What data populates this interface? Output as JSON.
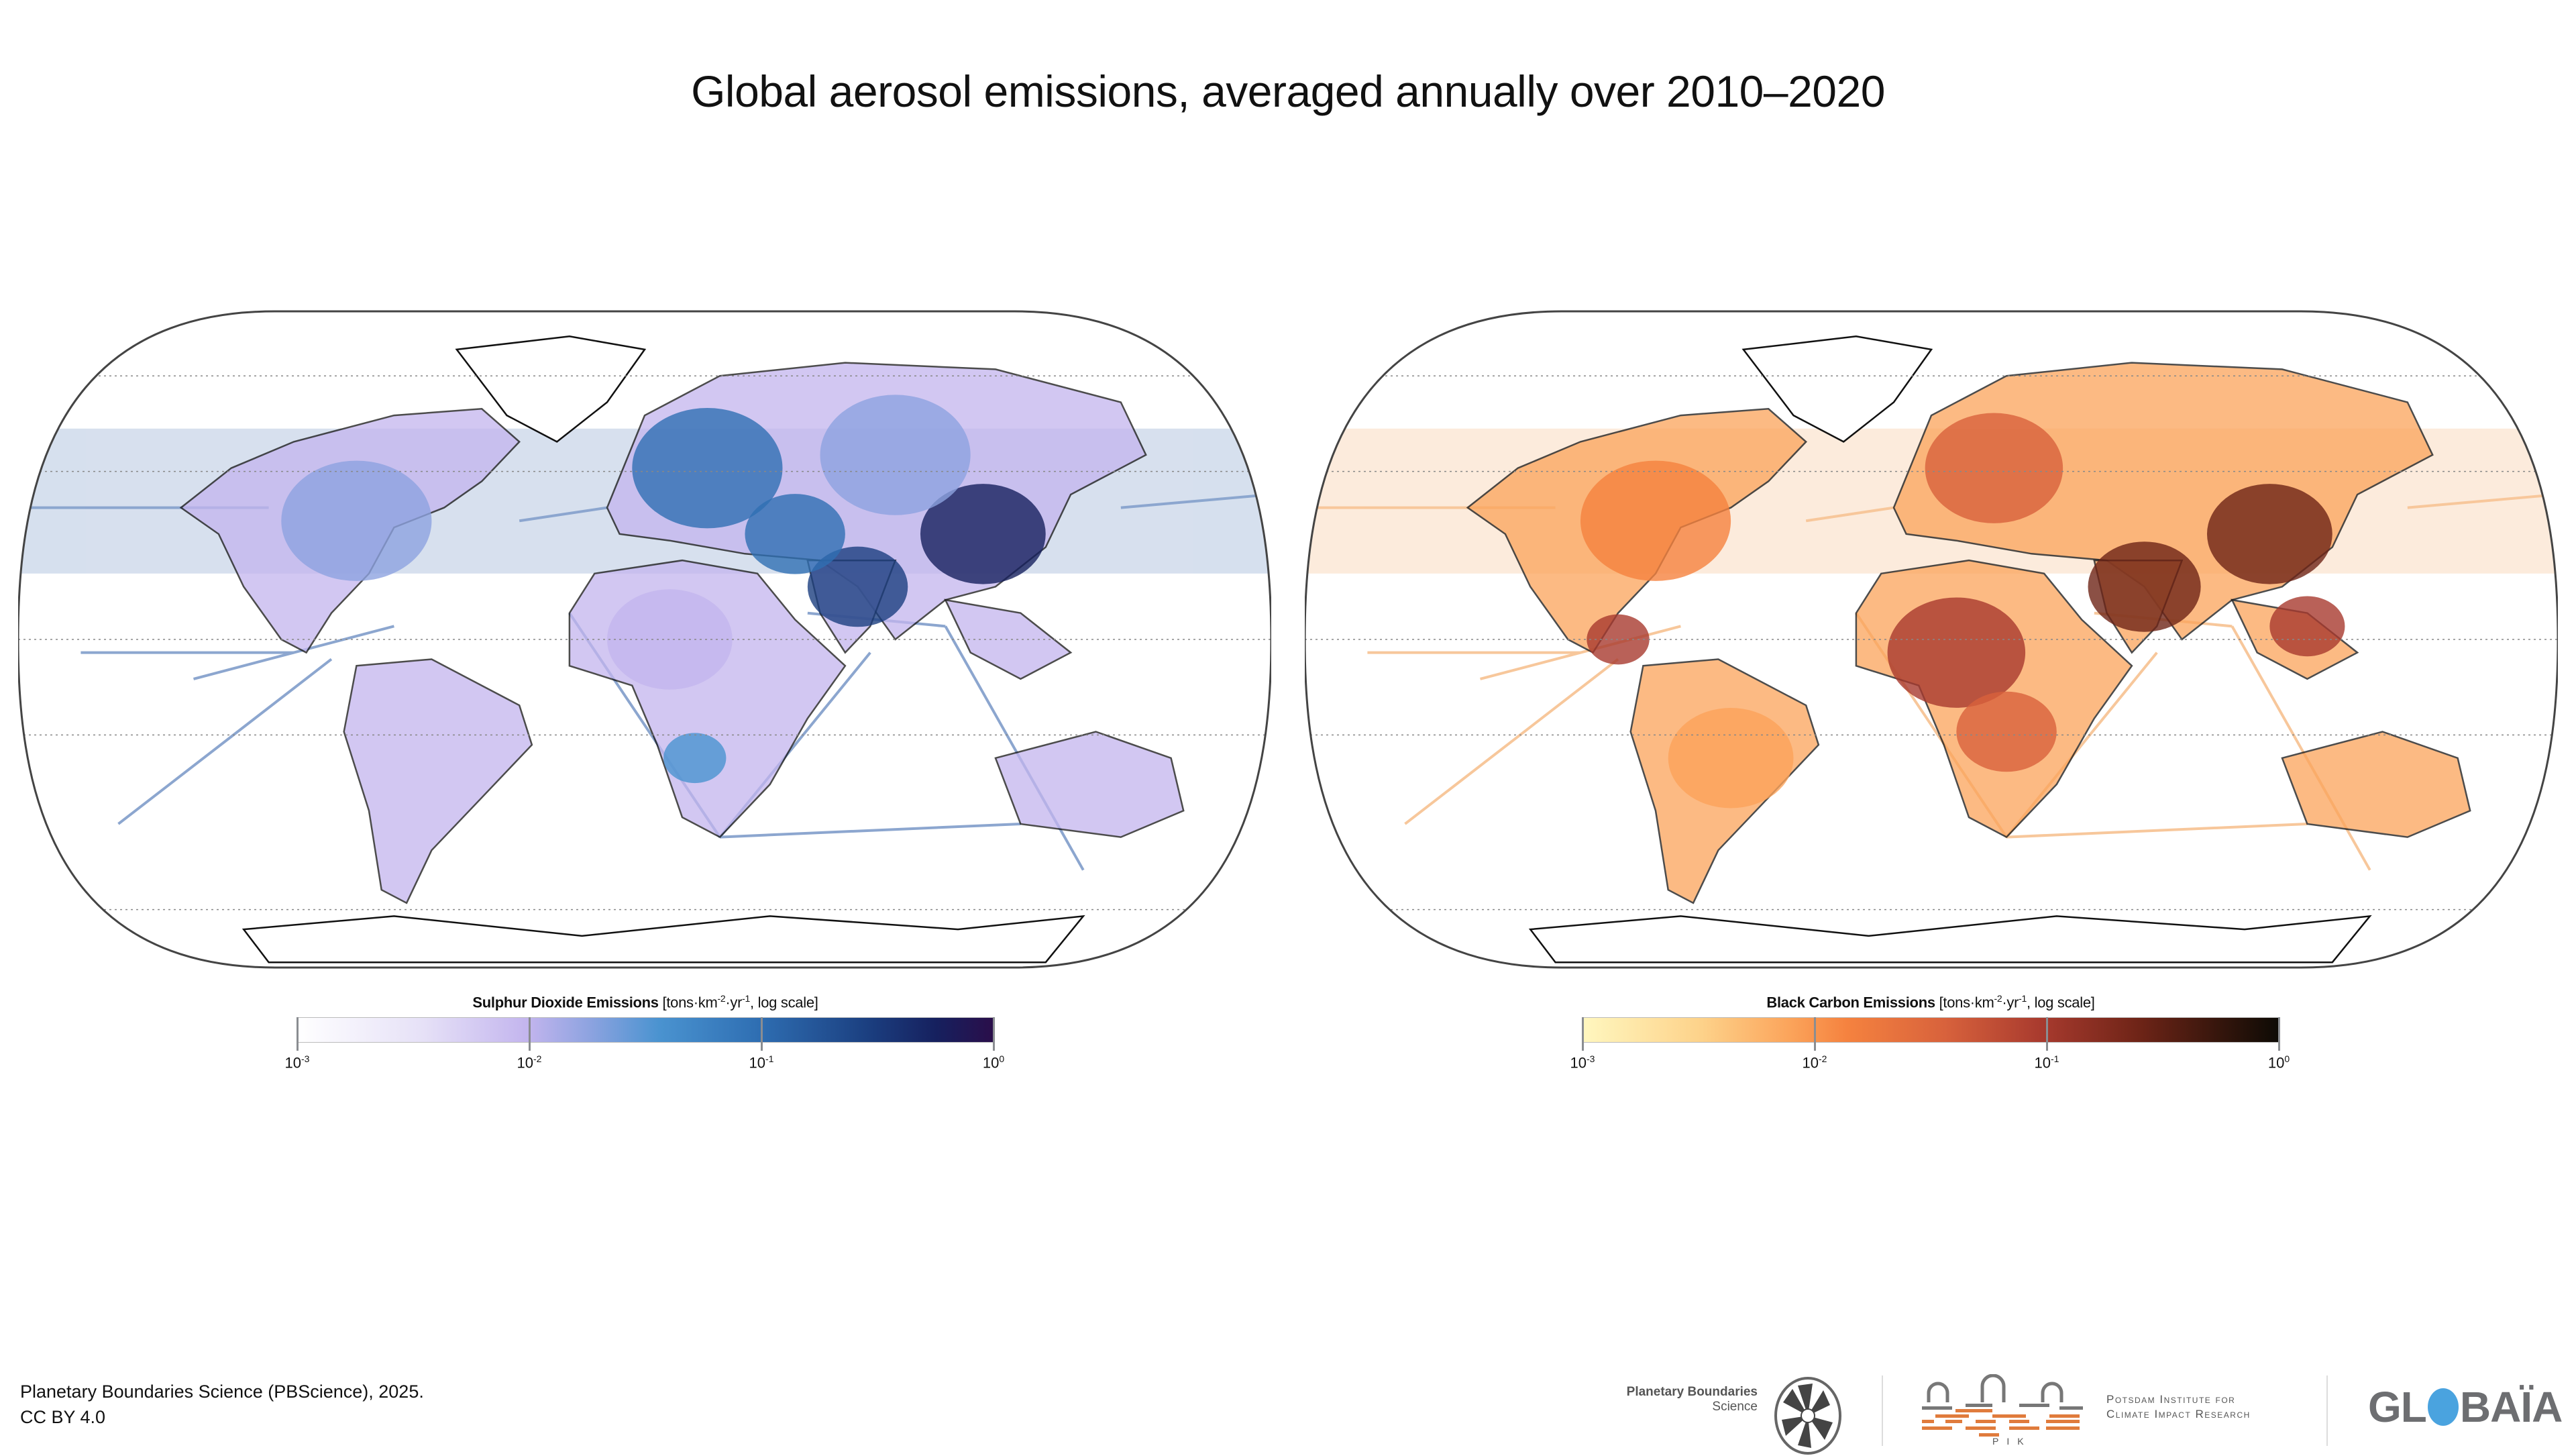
{
  "title": "Global aerosol emissions, averaged annually over 2010–2020",
  "maps": [
    {
      "id": "so2",
      "variable": "Sulphur Dioxide Emissions",
      "projection": "Equal Earth",
      "palette": [
        "#ffffff",
        "#e6e1f7",
        "#c3b5ee",
        "#8da3e0",
        "#4a93d0",
        "#2f6fb3",
        "#1b3f80",
        "#16205e",
        "#2a0e4a"
      ],
      "ship_color": "#2f5fa8",
      "hotspots": [
        "Eastern China",
        "India",
        "Europe",
        "Eastern United States",
        "Middle East",
        "Russia",
        "Southern Africa",
        "Central Africa"
      ]
    },
    {
      "id": "bc",
      "variable": "Black Carbon Emissions",
      "projection": "Equal Earth",
      "palette": [
        "#fff7bf",
        "#fdd28a",
        "#fba35a",
        "#f5823f",
        "#d8623c",
        "#a83a2e",
        "#6e2417",
        "#33150c",
        "#0e0b05"
      ],
      "ship_color": "#f29a4a",
      "hotspots": [
        "India",
        "Eastern China",
        "Central Africa",
        "Europe",
        "Eastern United States",
        "Southeast Asia",
        "Central America"
      ]
    }
  ],
  "colorbars": [
    {
      "title_bold": "Sulphur Dioxide Emissions",
      "units_prefix": " [tons·km",
      "units_exp1": "-2",
      "units_mid": "·yr",
      "units_exp2": "-1",
      "units_suffix": ", log scale]",
      "scale": "log",
      "range": [
        0.001,
        1
      ],
      "ticks": [
        {
          "value": 0.001,
          "base": "10",
          "exp": "-3"
        },
        {
          "value": 0.01,
          "base": "10",
          "exp": "-2"
        },
        {
          "value": 0.1,
          "base": "10",
          "exp": "-1"
        },
        {
          "value": 1,
          "base": "10",
          "exp": "0"
        }
      ]
    },
    {
      "title_bold": "Black Carbon Emissions",
      "units_prefix": " [tons·km",
      "units_exp1": "-2",
      "units_mid": "·yr",
      "units_exp2": "-1",
      "units_suffix": ", log scale]",
      "scale": "log",
      "range": [
        0.001,
        1
      ],
      "ticks": [
        {
          "value": 0.001,
          "base": "10",
          "exp": "-3"
        },
        {
          "value": 0.01,
          "base": "10",
          "exp": "-2"
        },
        {
          "value": 0.1,
          "base": "10",
          "exp": "-1"
        },
        {
          "value": 1,
          "base": "10",
          "exp": "0"
        }
      ]
    }
  ],
  "credit": {
    "line1": "Planetary Boundaries Science (PBScience), 2025.",
    "line2": "CC BY 4.0"
  },
  "logos": {
    "pbs_line1": "Planetary Boundaries",
    "pbs_line2": "Science",
    "pik_line1": "Potsdam Institute for",
    "pik_line2": "Climate Impact Research",
    "pik_abbr": "PIK",
    "globaia_left": "GL",
    "globaia_right": "BAÏA",
    "pik_orange": "#e07b3c",
    "globaia_blue": "#4aa3df"
  }
}
